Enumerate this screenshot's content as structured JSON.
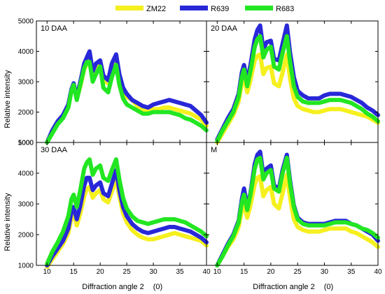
{
  "figure": {
    "xlabel_main": "Diffraction angle 2",
    "xlabel_unit": "(0)",
    "ylabel": "Relative intensity"
  },
  "legend": {
    "items": [
      {
        "name": "ZM22",
        "color": "#f5f01e"
      },
      {
        "name": "R639",
        "color": "#2828d8"
      },
      {
        "name": "R683",
        "color": "#22e622"
      }
    ],
    "placement": "top-center"
  },
  "chart_data": [
    {
      "type": "line",
      "panel_label": "10 DAA",
      "xlim": [
        8,
        40
      ],
      "ylim": [
        1000,
        5000
      ],
      "x_ticks": [
        10,
        15,
        20,
        25,
        30,
        35,
        40
      ],
      "y_ticks": [
        1000,
        2000,
        3000,
        4000,
        5000
      ],
      "x": [
        10,
        11,
        12,
        13,
        14,
        14.6,
        15,
        15.6,
        16.2,
        17,
        17.5,
        18,
        18.6,
        19.2,
        20,
        20.6,
        21.5,
        22.2,
        23,
        23.6,
        24.3,
        25,
        26,
        27,
        28,
        29,
        30,
        31,
        32,
        33,
        34,
        35,
        36,
        37,
        38,
        39,
        40
      ],
      "series": [
        {
          "name": "ZM22",
          "values": [
            1000,
            1350,
            1650,
            1850,
            2200,
            2700,
            2900,
            2450,
            2800,
            3400,
            3600,
            3800,
            3200,
            3450,
            3550,
            3050,
            2950,
            3400,
            3700,
            3100,
            2700,
            2500,
            2400,
            2200,
            2050,
            2050,
            2100,
            2100,
            2150,
            2150,
            2100,
            2050,
            2000,
            1950,
            1850,
            1750,
            1550
          ]
        },
        {
          "name": "R639",
          "values": [
            1000,
            1400,
            1700,
            1900,
            2250,
            2750,
            2950,
            2500,
            2950,
            3600,
            3800,
            4000,
            3350,
            3600,
            3700,
            3200,
            3050,
            3600,
            3900,
            3250,
            2800,
            2600,
            2400,
            2300,
            2200,
            2150,
            2250,
            2300,
            2350,
            2400,
            2350,
            2300,
            2250,
            2200,
            2050,
            1900,
            1650
          ]
        },
        {
          "name": "R683",
          "values": [
            1000,
            1300,
            1600,
            1800,
            2150,
            2700,
            2900,
            2400,
            2850,
            3450,
            3650,
            3650,
            3000,
            3250,
            3500,
            2800,
            2650,
            3150,
            3550,
            2900,
            2450,
            2250,
            2150,
            2050,
            1950,
            1950,
            2000,
            2000,
            2000,
            2000,
            1950,
            1900,
            1800,
            1750,
            1650,
            1550,
            1400
          ]
        }
      ]
    },
    {
      "type": "line",
      "panel_label": "20 DAA",
      "xlim": [
        8,
        40
      ],
      "ylim": [
        1000,
        5000
      ],
      "x_ticks": [
        10,
        15,
        20,
        25,
        30,
        35,
        40
      ],
      "y_ticks": [
        1000,
        2000,
        3000,
        4000,
        5000
      ],
      "x": [
        10,
        11,
        12,
        13,
        14,
        14.6,
        15,
        15.6,
        16.2,
        17,
        17.5,
        18,
        18.6,
        19.2,
        20,
        20.6,
        21.5,
        22.2,
        23,
        23.6,
        24.3,
        25,
        26,
        27,
        28,
        29,
        30,
        31,
        32,
        33,
        34,
        35,
        36,
        37,
        38,
        39,
        40
      ],
      "series": [
        {
          "name": "ZM22",
          "values": [
            1000,
            1300,
            1600,
            1900,
            2350,
            2950,
            3150,
            2650,
            3050,
            3700,
            3850,
            3900,
            3250,
            3450,
            3500,
            2950,
            2850,
            3300,
            3900,
            3100,
            2450,
            2200,
            2100,
            2050,
            2000,
            2000,
            2050,
            2100,
            2100,
            2100,
            2050,
            2000,
            1950,
            1900,
            1850,
            1750,
            1650
          ]
        },
        {
          "name": "R639",
          "values": [
            1100,
            1450,
            1800,
            2100,
            2600,
            3300,
            3550,
            3000,
            3550,
            4400,
            4700,
            4850,
            4050,
            4300,
            4350,
            3750,
            3700,
            4250,
            4850,
            3950,
            3150,
            2700,
            2550,
            2450,
            2450,
            2450,
            2550,
            2600,
            2600,
            2600,
            2550,
            2500,
            2400,
            2300,
            2150,
            2050,
            1900
          ]
        },
        {
          "name": "R683",
          "values": [
            1050,
            1400,
            1700,
            2000,
            2500,
            3150,
            3400,
            2850,
            3350,
            4150,
            4400,
            4500,
            3800,
            4050,
            4150,
            3500,
            3400,
            3950,
            4500,
            3650,
            2850,
            2500,
            2350,
            2300,
            2300,
            2300,
            2350,
            2400,
            2400,
            2400,
            2350,
            2300,
            2200,
            2100,
            1950,
            1850,
            1700
          ]
        }
      ]
    },
    {
      "type": "line",
      "panel_label": "30 DAA",
      "xlim": [
        8,
        40
      ],
      "ylim": [
        1000,
        5000
      ],
      "x_ticks": [
        10,
        15,
        20,
        25,
        30,
        35,
        40
      ],
      "y_ticks": [
        1000,
        2000,
        3000,
        4000,
        5000
      ],
      "x": [
        10,
        11,
        12,
        13,
        14,
        14.6,
        15,
        15.6,
        16.2,
        17,
        17.5,
        18,
        18.6,
        19.2,
        20,
        20.6,
        21.5,
        22.2,
        23,
        23.6,
        24.3,
        25,
        26,
        27,
        28,
        29,
        30,
        31,
        32,
        33,
        34,
        35,
        36,
        37,
        38,
        39,
        40
      ],
      "series": [
        {
          "name": "ZM22",
          "values": [
            950,
            1200,
            1450,
            1700,
            2050,
            2550,
            2700,
            2300,
            2650,
            3250,
            3500,
            3550,
            3200,
            3350,
            3450,
            3150,
            3050,
            3400,
            3800,
            3250,
            2700,
            2400,
            2150,
            2000,
            1900,
            1850,
            1850,
            1900,
            1950,
            2000,
            2050,
            2000,
            1950,
            1900,
            1850,
            1800,
            1650
          ]
        },
        {
          "name": "R639",
          "values": [
            1000,
            1300,
            1550,
            1800,
            2200,
            2750,
            2900,
            2500,
            2900,
            3600,
            3850,
            3850,
            3450,
            3600,
            3700,
            3350,
            3250,
            3650,
            4100,
            3450,
            2900,
            2600,
            2350,
            2200,
            2100,
            2050,
            2100,
            2150,
            2200,
            2250,
            2250,
            2200,
            2150,
            2100,
            2000,
            1900,
            1750
          ]
        },
        {
          "name": "R683",
          "values": [
            1050,
            1450,
            1750,
            2100,
            2600,
            3150,
            3300,
            2900,
            3400,
            4150,
            4350,
            4450,
            3950,
            4150,
            4250,
            3850,
            3750,
            4100,
            4450,
            3800,
            3200,
            2850,
            2600,
            2450,
            2400,
            2350,
            2400,
            2450,
            2500,
            2500,
            2500,
            2450,
            2400,
            2300,
            2200,
            2100,
            1950
          ]
        }
      ]
    },
    {
      "type": "line",
      "panel_label": "M",
      "xlim": [
        8,
        40
      ],
      "ylim": [
        1000,
        5000
      ],
      "x_ticks": [
        10,
        15,
        20,
        25,
        30,
        35,
        40
      ],
      "y_ticks": [
        1000,
        2000,
        3000,
        4000,
        5000
      ],
      "x": [
        10,
        11,
        12,
        13,
        14,
        14.6,
        15,
        15.6,
        16.2,
        17,
        17.5,
        18,
        18.6,
        19.2,
        20,
        20.6,
        21.5,
        22.2,
        23,
        23.6,
        24.3,
        25,
        26,
        27,
        28,
        29,
        30,
        31,
        32,
        33,
        34,
        35,
        36,
        37,
        38,
        39,
        40
      ],
      "series": [
        {
          "name": "ZM22",
          "values": [
            1000,
            1300,
            1600,
            1850,
            2250,
            2800,
            3000,
            2550,
            2950,
            3650,
            3850,
            3900,
            3250,
            3450,
            3550,
            3000,
            2850,
            3350,
            3950,
            3200,
            2500,
            2250,
            2150,
            2100,
            2100,
            2100,
            2150,
            2200,
            2200,
            2200,
            2200,
            2100,
            2050,
            1950,
            1850,
            1750,
            1600
          ]
        },
        {
          "name": "R639",
          "values": [
            1000,
            1350,
            1700,
            2000,
            2450,
            3150,
            3500,
            2900,
            3350,
            4300,
            4600,
            4700,
            3950,
            4150,
            4250,
            3600,
            3500,
            4100,
            4600,
            3750,
            2950,
            2550,
            2400,
            2350,
            2350,
            2350,
            2350,
            2400,
            2450,
            2450,
            2450,
            2350,
            2300,
            2200,
            2100,
            2000,
            1800
          ]
        },
        {
          "name": "R683",
          "values": [
            1000,
            1300,
            1650,
            1950,
            2400,
            3050,
            3300,
            2800,
            3300,
            4150,
            4450,
            4500,
            3800,
            4000,
            4100,
            3500,
            3400,
            4000,
            4500,
            3650,
            2900,
            2500,
            2350,
            2300,
            2300,
            2300,
            2300,
            2350,
            2400,
            2400,
            2400,
            2350,
            2300,
            2200,
            2150,
            2050,
            1900
          ]
        }
      ]
    }
  ]
}
